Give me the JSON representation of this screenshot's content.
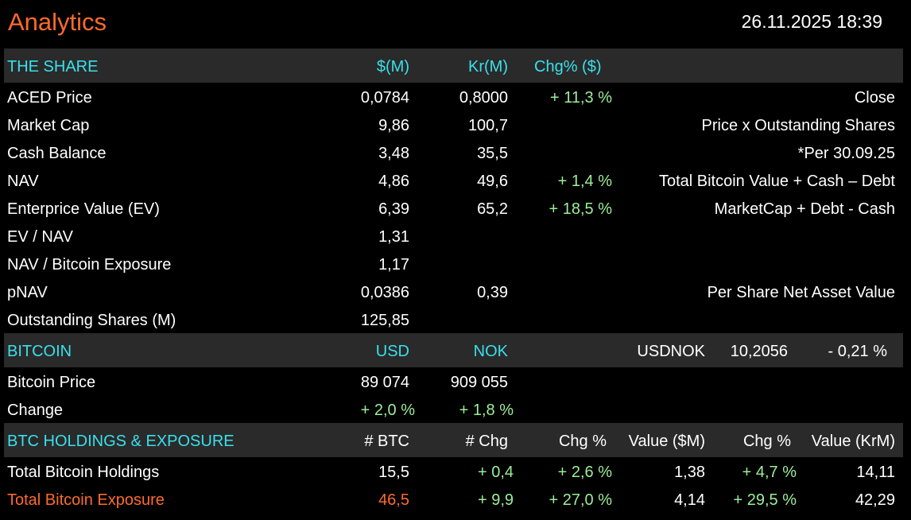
{
  "header": {
    "title": "Analytics",
    "datetime": "26.11.2025 18:39"
  },
  "colors": {
    "background": "#000000",
    "header_band": "#2a2a2a",
    "header_text": "#39e0ec",
    "title": "#ff6a2c",
    "positive": "#9dee9a",
    "highlight": "#ff6a2c"
  },
  "share": {
    "heading": "THE SHARE",
    "col_usd": "$(M)",
    "col_nok": "Kr(M)",
    "col_chg": "Chg% ($)",
    "rows": [
      {
        "label": "ACED Price",
        "usd": "0,0784",
        "nok": "0,8000",
        "chg": "+ 11,3 %",
        "note": "Close"
      },
      {
        "label": "Market Cap",
        "usd": "9,86",
        "nok": "100,7",
        "chg": "",
        "note": "Price x Outstanding Shares"
      },
      {
        "label": "Cash Balance",
        "usd": "3,48",
        "nok": "35,5",
        "chg": "",
        "note": "*Per 30.09.25"
      },
      {
        "label": "NAV",
        "usd": "4,86",
        "nok": "49,6",
        "chg": "+ 1,4 %",
        "note": "Total Bitcoin Value + Cash – Debt"
      },
      {
        "label": "Enterprice Value (EV)",
        "usd": "6,39",
        "nok": "65,2",
        "chg": "+ 18,5 %",
        "note": "MarketCap + Debt - Cash"
      },
      {
        "label": "EV / NAV",
        "usd": "1,31",
        "nok": "",
        "chg": "",
        "note": ""
      },
      {
        "label": "NAV / Bitcoin Exposure",
        "usd": "1,17",
        "nok": "",
        "chg": "",
        "note": ""
      },
      {
        "label": "pNAV",
        "usd": "0,0386",
        "nok": "0,39",
        "chg": "",
        "note": "Per Share Net Asset Value"
      },
      {
        "label": "Outstanding Shares (M)",
        "usd": "125,85",
        "nok": "",
        "chg": "",
        "note": ""
      }
    ]
  },
  "bitcoin": {
    "heading": "BITCOIN",
    "col_usd": "USD",
    "col_nok": "NOK",
    "fx_label": "USDNOK",
    "fx_value": "10,2056",
    "fx_change": "- 0,21 %",
    "price_label": "Bitcoin Price",
    "price_usd": "89 074",
    "price_nok": "909 055",
    "change_label": "Change",
    "change_usd": "+ 2,0 %",
    "change_nok": "+ 1,8 %"
  },
  "holdings": {
    "heading": "BTC HOLDINGS & EXPOSURE",
    "col_btc": "# BTC",
    "col_chg": "# Chg",
    "col_chg_pct": "Chg %",
    "col_value_usd": "Value ($M)",
    "col_chg_pct2": "Chg %",
    "col_value_nok": "Value (KrM)",
    "rows": [
      {
        "label": "Total Bitcoin Holdings",
        "btc": "15,5",
        "chg": "+ 0,4",
        "chg_pct": "+ 2,6 %",
        "value_usd": "1,38",
        "chg_pct2": "+ 4,7 %",
        "value_nok": "14,11"
      },
      {
        "label": "Total Bitcoin Exposure",
        "btc": "46,5",
        "chg": "+ 9,9",
        "chg_pct": "+ 27,0 %",
        "value_usd": "4,14",
        "chg_pct2": "+ 29,5 %",
        "value_nok": "42,29"
      }
    ]
  }
}
